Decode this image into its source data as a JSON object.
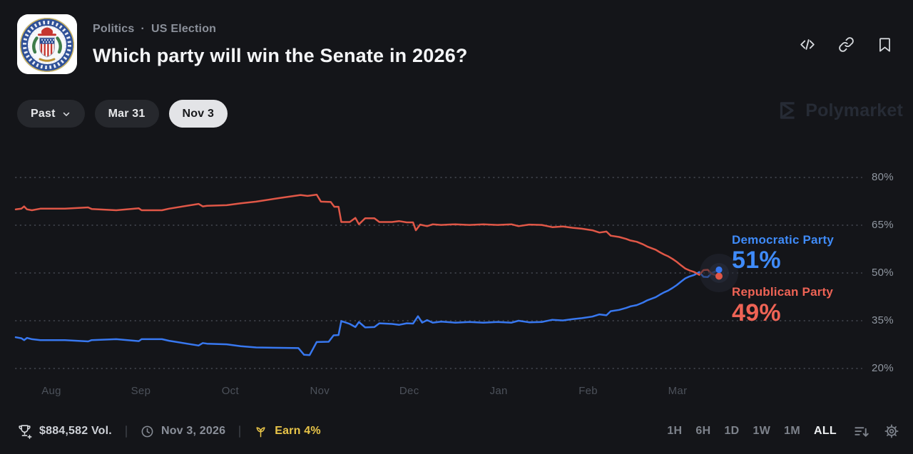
{
  "header": {
    "breadcrumb": {
      "items": [
        "Politics",
        "US Election"
      ],
      "separator": "·"
    },
    "title": "Which party will win the Senate in 2026?",
    "actions": [
      {
        "name": "embed",
        "icon": "code-icon"
      },
      {
        "name": "copy-link",
        "icon": "link-icon"
      },
      {
        "name": "bookmark",
        "icon": "bookmark-icon"
      }
    ]
  },
  "toolbar": {
    "pills": [
      {
        "label": "Past",
        "chevron": true,
        "selected": false
      },
      {
        "label": "Mar 31",
        "chevron": false,
        "selected": false
      },
      {
        "label": "Nov 3",
        "chevron": false,
        "selected": true
      }
    ]
  },
  "watermark": {
    "label": "Polymarket"
  },
  "chart_data": {
    "type": "line",
    "title": "Which party will win the Senate in 2026?",
    "x_axis": {
      "labels": [
        "Aug",
        "Sep",
        "Oct",
        "Nov",
        "Dec",
        "Jan",
        "Feb",
        "Mar"
      ],
      "unit": "month"
    },
    "y_axis": {
      "labels": [
        "80%",
        "65%",
        "50%",
        "35%",
        "20%"
      ],
      "values": [
        80,
        65,
        50,
        35,
        20
      ],
      "min": 20,
      "max": 80
    },
    "grid": "dotted-horizontal",
    "legend_position": "right",
    "series": [
      {
        "name": "Democratic Party",
        "current": "51%",
        "current_value": 51,
        "color": "#3878f0",
        "label_color": "#3f8bf9",
        "points": [
          [
            0,
            29.8
          ],
          [
            0.8,
            29.5
          ],
          [
            1.2,
            28.9
          ],
          [
            1.6,
            29.6
          ],
          [
            2.3,
            29.2
          ],
          [
            3.5,
            28.9
          ],
          [
            7,
            28.9
          ],
          [
            10.3,
            28.5
          ],
          [
            10.8,
            28.9
          ],
          [
            14.3,
            29.2
          ],
          [
            17.5,
            28.6
          ],
          [
            17.9,
            29.2
          ],
          [
            20.8,
            29.2
          ],
          [
            21.8,
            28.7
          ],
          [
            26,
            27.2
          ],
          [
            26.6,
            28
          ],
          [
            27.2,
            27.8
          ],
          [
            30,
            27.6
          ],
          [
            32,
            27
          ],
          [
            34.2,
            26.6
          ],
          [
            37.4,
            26.5
          ],
          [
            40.2,
            26.4
          ],
          [
            41,
            24.3
          ],
          [
            41.8,
            24.2
          ],
          [
            42.8,
            28.3
          ],
          [
            44.5,
            28.4
          ],
          [
            45.2,
            30.4
          ],
          [
            45.9,
            30.5
          ],
          [
            46.3,
            34.9
          ],
          [
            47.5,
            34
          ],
          [
            48.3,
            33
          ],
          [
            48.8,
            34.6
          ],
          [
            49.7,
            32.9
          ],
          [
            51,
            33
          ],
          [
            51.7,
            34.2
          ],
          [
            53.5,
            34
          ],
          [
            54.5,
            33.7
          ],
          [
            55.6,
            34.2
          ],
          [
            56.5,
            34.1
          ],
          [
            57.2,
            36.4
          ],
          [
            57.8,
            34.4
          ],
          [
            58.5,
            35.2
          ],
          [
            59.3,
            34.4
          ],
          [
            60.5,
            34.7
          ],
          [
            62.5,
            34.4
          ],
          [
            64.5,
            34.6
          ],
          [
            66.5,
            34.4
          ],
          [
            68.5,
            34.6
          ],
          [
            70.5,
            34.4
          ],
          [
            71.5,
            35
          ],
          [
            73,
            34.5
          ],
          [
            74.8,
            34.6
          ],
          [
            76.3,
            35.3
          ],
          [
            77.8,
            35.1
          ],
          [
            79.2,
            35.5
          ],
          [
            80.5,
            35.8
          ],
          [
            82,
            36.3
          ],
          [
            83,
            37
          ],
          [
            84,
            36.7
          ],
          [
            84.6,
            38
          ],
          [
            85.8,
            38.4
          ],
          [
            86.8,
            39
          ],
          [
            87.4,
            39.5
          ],
          [
            88.3,
            39.9
          ],
          [
            89.2,
            40.7
          ],
          [
            89.8,
            41.4
          ],
          [
            90.4,
            41.9
          ],
          [
            91,
            42.4
          ],
          [
            91.6,
            43.2
          ],
          [
            92.2,
            43.9
          ],
          [
            92.8,
            44.5
          ],
          [
            93.4,
            45.3
          ],
          [
            94,
            46.2
          ],
          [
            94.6,
            47.3
          ],
          [
            95.2,
            48.3
          ],
          [
            95.8,
            48.9
          ],
          [
            96.5,
            49.4
          ],
          [
            97.2,
            50.3
          ],
          [
            97.8,
            48.8
          ],
          [
            98.4,
            48.7
          ],
          [
            99,
            50
          ],
          [
            99.5,
            50.5
          ],
          [
            100,
            51
          ]
        ]
      },
      {
        "name": "Republican Party",
        "current": "49%",
        "current_value": 49,
        "color": "#e05747",
        "label_color": "#ee6355",
        "points": [
          [
            0,
            70
          ],
          [
            0.8,
            70.2
          ],
          [
            1.2,
            70.9
          ],
          [
            1.6,
            70
          ],
          [
            2.3,
            69.7
          ],
          [
            3.5,
            70.2
          ],
          [
            7,
            70.2
          ],
          [
            10.3,
            70.6
          ],
          [
            10.8,
            70.1
          ],
          [
            14.3,
            69.7
          ],
          [
            17.5,
            70.3
          ],
          [
            17.9,
            69.7
          ],
          [
            20.8,
            69.7
          ],
          [
            21.8,
            70.2
          ],
          [
            26,
            71.7
          ],
          [
            26.6,
            70.9
          ],
          [
            27.2,
            71.1
          ],
          [
            30,
            71.3
          ],
          [
            32,
            71.9
          ],
          [
            34.2,
            72.4
          ],
          [
            37.4,
            73.5
          ],
          [
            40.5,
            74.5
          ],
          [
            41.5,
            74.2
          ],
          [
            42.8,
            74.6
          ],
          [
            43.4,
            72.4
          ],
          [
            44.8,
            72.3
          ],
          [
            45.3,
            70.8
          ],
          [
            45.9,
            70.8
          ],
          [
            46.3,
            66
          ],
          [
            47.5,
            66
          ],
          [
            48.3,
            67.3
          ],
          [
            48.8,
            65.3
          ],
          [
            49.7,
            67.2
          ],
          [
            51,
            67.2
          ],
          [
            51.7,
            66
          ],
          [
            53.5,
            66
          ],
          [
            54.5,
            66.3
          ],
          [
            55.6,
            65.9
          ],
          [
            56.5,
            65.9
          ],
          [
            56.9,
            63.4
          ],
          [
            57.5,
            65.2
          ],
          [
            58.5,
            64.7
          ],
          [
            59.3,
            65.3
          ],
          [
            60.5,
            65.1
          ],
          [
            62.5,
            65.3
          ],
          [
            64.5,
            65.1
          ],
          [
            66.5,
            65.3
          ],
          [
            68.5,
            65.1
          ],
          [
            70.5,
            65.3
          ],
          [
            71.5,
            64.7
          ],
          [
            73,
            65.2
          ],
          [
            74.8,
            65.1
          ],
          [
            76.3,
            64.4
          ],
          [
            77.8,
            64.6
          ],
          [
            79.2,
            64.2
          ],
          [
            80.5,
            63.9
          ],
          [
            82,
            63.4
          ],
          [
            83,
            62.7
          ],
          [
            84,
            63
          ],
          [
            84.6,
            61.7
          ],
          [
            85.8,
            61.3
          ],
          [
            86.8,
            60.7
          ],
          [
            87.4,
            60.2
          ],
          [
            88.3,
            59.8
          ],
          [
            89.2,
            59
          ],
          [
            89.8,
            58.3
          ],
          [
            90.4,
            57.8
          ],
          [
            91,
            57.3
          ],
          [
            91.6,
            56.5
          ],
          [
            92.2,
            55.8
          ],
          [
            92.8,
            55.2
          ],
          [
            93.4,
            54.4
          ],
          [
            94,
            53.5
          ],
          [
            94.6,
            52.4
          ],
          [
            95.2,
            51.4
          ],
          [
            95.8,
            50.8
          ],
          [
            96.5,
            50.3
          ],
          [
            97.2,
            49.4
          ],
          [
            97.8,
            50.9
          ],
          [
            98.4,
            51
          ],
          [
            99,
            49.7
          ],
          [
            99.5,
            49.3
          ],
          [
            100,
            49
          ]
        ]
      }
    ]
  },
  "footer": {
    "volume": "$884,582 Vol.",
    "date": "Nov 3, 2026",
    "earn": "Earn 4%",
    "timeframes": [
      {
        "label": "1H",
        "selected": false
      },
      {
        "label": "6H",
        "selected": false
      },
      {
        "label": "1D",
        "selected": false
      },
      {
        "label": "1W",
        "selected": false
      },
      {
        "label": "1M",
        "selected": false
      },
      {
        "label": "ALL",
        "selected": true
      }
    ]
  },
  "colors": {
    "background": "#141519",
    "grid": "#3b3e46",
    "democrat_line": "#3878f0",
    "democrat_text": "#3f8bf9",
    "republican_line": "#e05747",
    "republican_text": "#ee6355",
    "earn_yellow": "#e9c549",
    "selected_pill": "#e3e4e7"
  }
}
